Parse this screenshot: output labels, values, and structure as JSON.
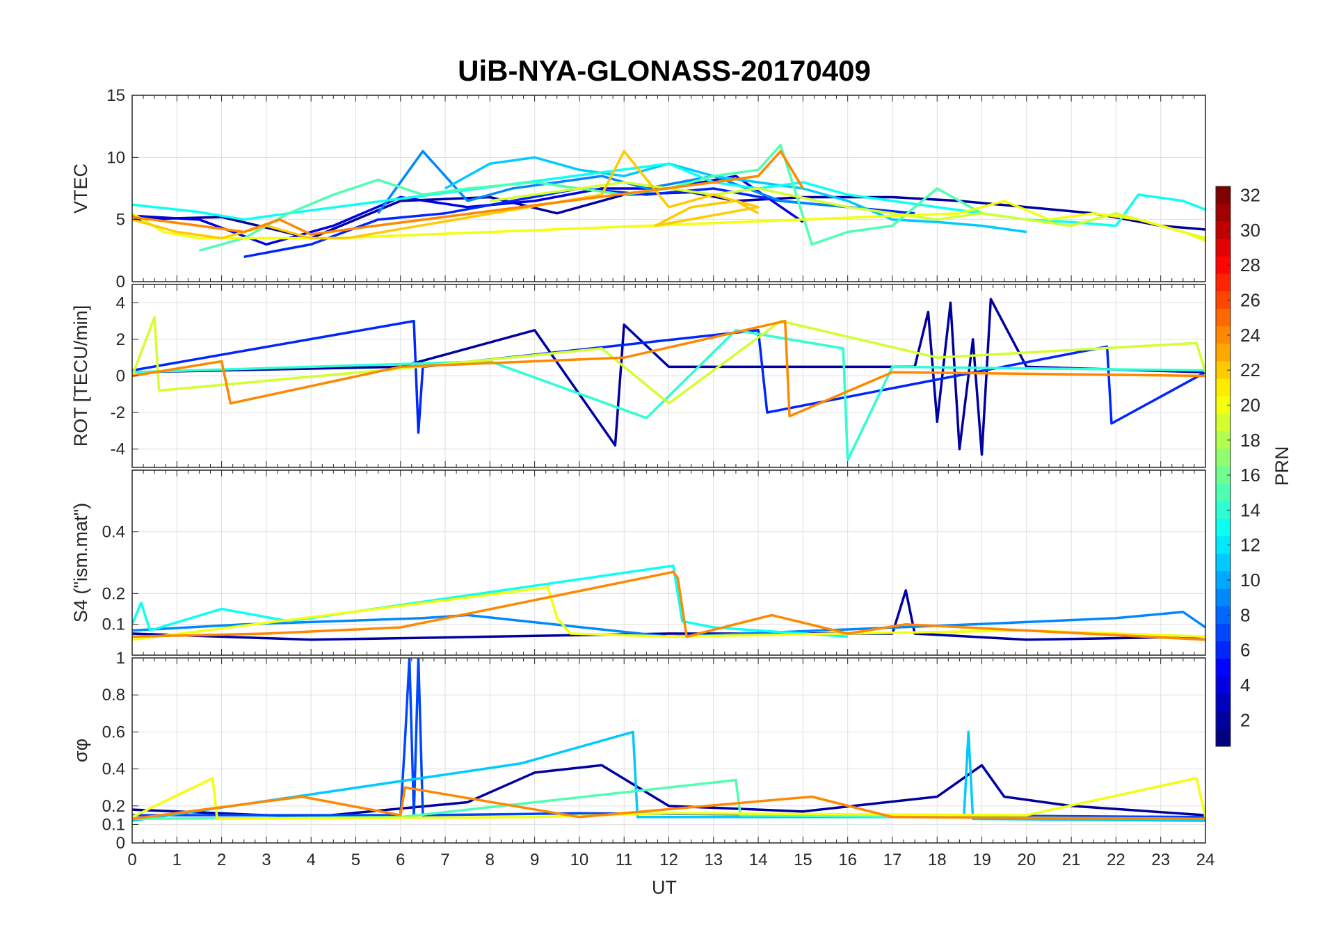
{
  "chart_data": {
    "type": "line",
    "title": "UiB-NYA-GLONASS-20170409",
    "xlabel": "UT",
    "xlim": [
      0,
      24
    ],
    "xticks": [
      "0",
      "1",
      "2",
      "3",
      "4",
      "5",
      "6",
      "7",
      "8",
      "9",
      "10",
      "11",
      "12",
      "13",
      "14",
      "15",
      "16",
      "17",
      "18",
      "19",
      "20",
      "21",
      "22",
      "23",
      "24"
    ],
    "colorbar": {
      "label": "PRN",
      "range": [
        1,
        32
      ],
      "ticks": [
        "2",
        "4",
        "6",
        "8",
        "10",
        "12",
        "14",
        "16",
        "18",
        "20",
        "22",
        "24",
        "26",
        "28",
        "30",
        "32"
      ],
      "colormap": "jet"
    },
    "panels": [
      {
        "id": "vtec",
        "ylabel": "VTEC",
        "ylim": [
          0,
          15
        ],
        "yticks": [
          "0",
          "5",
          "10",
          "15"
        ],
        "series": [
          {
            "prn": 2,
            "x": [
              0,
              2,
              4,
              6,
              8,
              9.5,
              11,
              12.5,
              13.5,
              15,
              17,
              18.5,
              20,
              21.5,
              23,
              24
            ],
            "y": [
              5.0,
              5.2,
              3.5,
              6.5,
              6.8,
              5.5,
              7.0,
              7.2,
              6.5,
              6.8,
              6.8,
              6.5,
              6.0,
              5.5,
              4.5,
              4.2
            ]
          },
          {
            "prn": 4,
            "x": [
              0,
              1.5,
              3,
              4.5,
              6,
              7.5,
              9,
              10.5,
              12,
              13.5,
              15
            ],
            "y": [
              5.3,
              5.0,
              3.0,
              4.5,
              6.8,
              6.0,
              6.5,
              7.5,
              7.5,
              8.5,
              4.8
            ]
          },
          {
            "prn": 6,
            "x": [
              2.5,
              4,
              5.5,
              7,
              8.5,
              10,
              11.5,
              13,
              14.5,
              16,
              17.5
            ],
            "y": [
              2.0,
              3.0,
              5.0,
              5.5,
              6.5,
              7.5,
              7.0,
              7.5,
              6.5,
              6.0,
              5.5
            ]
          },
          {
            "prn": 9,
            "x": [
              5.5,
              6.5,
              7.5,
              8.5,
              9.5,
              10.5,
              11.5,
              13,
              14.5,
              16
            ],
            "y": [
              5.5,
              10.5,
              6.5,
              7.5,
              8.0,
              8.5,
              7.5,
              8.5,
              6.5,
              6.0
            ]
          },
          {
            "prn": 11,
            "x": [
              7,
              8,
              9,
              10,
              11,
              12,
              13,
              14,
              15,
              16,
              17,
              18,
              19,
              20
            ],
            "y": [
              7.5,
              9.5,
              10.0,
              9.0,
              8.5,
              9.5,
              8.5,
              8.0,
              7.5,
              6.5,
              5.0,
              4.8,
              4.5,
              4.0
            ]
          },
          {
            "prn": 13,
            "x": [
              0,
              1.5,
              2.5,
              3.5,
              12,
              13,
              14,
              15,
              16,
              17,
              18,
              19,
              20,
              21,
              22,
              22.5,
              23.5,
              24
            ],
            "y": [
              6.2,
              5.6,
              5.0,
              5.5,
              9.5,
              8.0,
              7.5,
              8.0,
              7.0,
              6.5,
              6.0,
              5.5,
              5.0,
              4.8,
              4.5,
              7.0,
              6.5,
              5.8
            ]
          },
          {
            "prn": 15,
            "x": [
              1.5,
              2.5,
              3.5,
              4.5,
              5.5,
              6.5,
              7.5,
              9,
              10,
              11,
              12,
              13,
              14,
              14.5,
              15.2,
              16,
              17,
              18,
              19,
              20,
              21
            ],
            "y": [
              2.5,
              3.5,
              5.5,
              7.0,
              8.2,
              7.0,
              7.5,
              8.0,
              7.5,
              7.0,
              7.5,
              8.5,
              9.0,
              11.0,
              3.0,
              4.0,
              4.5,
              7.5,
              5.5,
              5.0,
              4.5
            ]
          },
          {
            "prn": 19,
            "x": [
              8,
              9,
              10,
              11,
              12,
              13,
              14,
              16,
              17,
              18,
              19,
              20,
              21,
              22,
              23,
              24
            ],
            "y": [
              6.5,
              7.0,
              7.5,
              8.0,
              7.5,
              7.0,
              7.5,
              6.0,
              5.5,
              5.0,
              5.5,
              5.0,
              4.5,
              5.5,
              4.5,
              3.5
            ]
          },
          {
            "prn": 20,
            "x": [
              0,
              0.7,
              1.5,
              2.5,
              3.5,
              4.5,
              18.5,
              19.5,
              20.5,
              21.5,
              22.5,
              23.5,
              24
            ],
            "y": [
              5.5,
              4.0,
              3.5,
              3.5,
              3.5,
              3.5,
              5.5,
              6.5,
              5.0,
              5.5,
              5.0,
              4.0,
              3.3
            ]
          },
          {
            "prn": 22,
            "x": [
              0,
              1,
              2,
              3,
              4,
              4.8,
              10.5,
              11,
              12,
              13,
              14,
              11.7,
              12.5,
              13.5,
              14
            ],
            "y": [
              5.0,
              4.0,
              3.5,
              4.5,
              3.5,
              3.5,
              7.0,
              10.5,
              6.0,
              7.0,
              6.0,
              4.5,
              6.0,
              6.5,
              5.5
            ]
          },
          {
            "prn": 24,
            "x": [
              0,
              1.5,
              2.5,
              3.3,
              4,
              4.8,
              13,
              14,
              14.5,
              15
            ],
            "y": [
              5.2,
              4.5,
              4.0,
              5.0,
              3.8,
              4.2,
              8.0,
              8.5,
              10.5,
              7.5
            ]
          }
        ]
      },
      {
        "id": "rot",
        "ylabel": "ROT [TECU/min]",
        "ylim": [
          -5,
          5
        ],
        "yticks": [
          "-4",
          "-2",
          "0",
          "2",
          "4"
        ],
        "series": [
          {
            "prn": 2,
            "x": [
              0,
              6,
              9,
              10.8,
              11,
              12,
              17.5,
              17.8,
              18,
              18.3,
              18.5,
              18.8,
              19,
              19.2,
              20,
              24
            ],
            "y": [
              0.2,
              0.5,
              2.5,
              -3.8,
              2.8,
              0.5,
              0.5,
              3.5,
              -2.5,
              4.0,
              -4.0,
              2.0,
              -4.3,
              4.2,
              0.5,
              0.2
            ]
          },
          {
            "prn": 6,
            "x": [
              0,
              6.3,
              6.4,
              6.5,
              14,
              14.2,
              21.8,
              21.9,
              24
            ],
            "y": [
              0.3,
              3.0,
              -3.1,
              0.5,
              2.5,
              -2.0,
              1.6,
              -2.6,
              0.2
            ]
          },
          {
            "prn": 14,
            "x": [
              0,
              4,
              8,
              11.5,
              13.5,
              15.9,
              16,
              17,
              24
            ],
            "y": [
              0.2,
              0.5,
              0.8,
              -2.3,
              2.5,
              1.5,
              -4.6,
              0.5,
              0.3
            ]
          },
          {
            "prn": 19,
            "x": [
              0,
              0.5,
              0.6,
              6,
              10.5,
              12,
              14.5,
              18,
              23.8,
              24
            ],
            "y": [
              0.0,
              3.2,
              -0.8,
              0.4,
              1.5,
              -1.5,
              3.0,
              1.0,
              1.8,
              0.2
            ]
          },
          {
            "prn": 24,
            "x": [
              0,
              2,
              2.2,
              6,
              11,
              14.6,
              14.7,
              17,
              24
            ],
            "y": [
              0.0,
              0.8,
              -1.5,
              0.5,
              1.0,
              3.0,
              -2.2,
              0.2,
              0.0
            ]
          }
        ]
      },
      {
        "id": "s4",
        "ylabel": "S4 (\"ism.mat\")",
        "ylim": [
          0,
          0.6
        ],
        "yticks": [
          "0.1",
          "0.2",
          "0.4"
        ],
        "series": [
          {
            "prn": 2,
            "x": [
              0,
              4,
              8,
              12,
              17,
              17.3,
              17.5,
              20,
              24
            ],
            "y": [
              0.07,
              0.05,
              0.06,
              0.07,
              0.07,
              0.21,
              0.07,
              0.05,
              0.06
            ]
          },
          {
            "prn": 9,
            "x": [
              0,
              2.5,
              6.5,
              7.5,
              12,
              18.8,
              22,
              23.5,
              24
            ],
            "y": [
              0.08,
              0.1,
              0.12,
              0.13,
              0.06,
              0.1,
              0.12,
              0.14,
              0.09
            ]
          },
          {
            "prn": 13,
            "x": [
              0,
              0.2,
              0.4,
              2,
              3.5,
              12.1,
              12.3,
              13,
              16
            ],
            "y": [
              0.1,
              0.17,
              0.08,
              0.15,
              0.11,
              0.29,
              0.11,
              0.09,
              0.06
            ]
          },
          {
            "prn": 20,
            "x": [
              0,
              9.3,
              9.5,
              9.8,
              12,
              20,
              24
            ],
            "y": [
              0.05,
              0.22,
              0.12,
              0.07,
              0.06,
              0.08,
              0.06
            ]
          },
          {
            "prn": 24,
            "x": [
              0,
              3,
              6,
              12.1,
              12.2,
              12.4,
              14.3,
              16,
              17.3,
              24
            ],
            "y": [
              0.06,
              0.07,
              0.09,
              0.27,
              0.25,
              0.06,
              0.13,
              0.07,
              0.1,
              0.05
            ]
          }
        ]
      },
      {
        "id": "sigma",
        "ylabel": "σφ",
        "ylim": [
          0,
          1
        ],
        "yticks": [
          "0",
          "0.1",
          "0.2",
          "0.4",
          "0.6",
          "0.8",
          "1"
        ],
        "series": [
          {
            "prn": 2,
            "x": [
              0,
              4,
              7.5,
              9,
              10.5,
              12,
              15,
              18,
              19,
              19.5,
              21,
              24
            ],
            "y": [
              0.18,
              0.14,
              0.22,
              0.38,
              0.42,
              0.2,
              0.17,
              0.25,
              0.42,
              0.25,
              0.2,
              0.15
            ]
          },
          {
            "prn": 7,
            "x": [
              0,
              6,
              6.1,
              6.2,
              6.3,
              6.4,
              6.5,
              10,
              24
            ],
            "y": [
              0.15,
              0.15,
              0.55,
              1.0,
              0.15,
              1.0,
              0.15,
              0.16,
              0.14
            ]
          },
          {
            "prn": 11,
            "x": [
              0,
              8.7,
              11.2,
              11.3,
              18.6,
              18.7,
              18.8,
              24
            ],
            "y": [
              0.12,
              0.43,
              0.6,
              0.14,
              0.14,
              0.6,
              0.13,
              0.12
            ]
          },
          {
            "prn": 15,
            "x": [
              0,
              6,
              13.5,
              13.6,
              18,
              24
            ],
            "y": [
              0.13,
              0.14,
              0.34,
              0.15,
              0.14,
              0.13
            ]
          },
          {
            "prn": 20,
            "x": [
              0,
              1.8,
              1.9,
              9,
              12,
              20,
              23.8,
              24
            ],
            "y": [
              0.14,
              0.35,
              0.13,
              0.14,
              0.16,
              0.15,
              0.35,
              0.14
            ]
          },
          {
            "prn": 24,
            "x": [
              0,
              3.8,
              6,
              6.1,
              10,
              15.2,
              17,
              24
            ],
            "y": [
              0.13,
              0.25,
              0.15,
              0.3,
              0.14,
              0.25,
              0.14,
              0.13
            ]
          }
        ]
      }
    ]
  }
}
